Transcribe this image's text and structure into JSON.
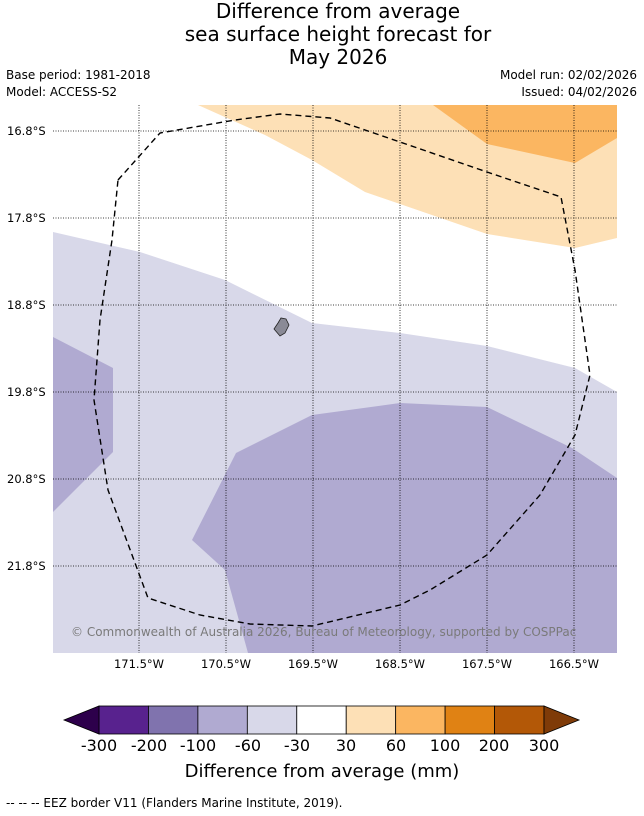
{
  "title_lines": [
    "Difference from average",
    "sea surface height forecast for",
    "May 2026"
  ],
  "meta": {
    "base_period": "Base period: 1981-2018",
    "model": "Model: ACCESS-S2",
    "model_run": "Model run: 02/02/2026",
    "issued": "Issued: 04/02/2026"
  },
  "map": {
    "lat_labels": [
      "16.8°S",
      "17.8°S",
      "18.8°S",
      "19.8°S",
      "20.8°S",
      "21.8°S"
    ],
    "lon_labels": [
      "171.5°W",
      "170.5°W",
      "169.5°W",
      "168.5°W",
      "167.5°W",
      "166.5°W"
    ],
    "copyright": "© Commonwealth of Australia 2026, Bureau of Meteorology, supported by COSPPac",
    "region_colors": {
      "neutral": "#ffffff",
      "low_neg": "#d8d8e9",
      "mid_neg": "#b0aad1",
      "low_pos": "#fde0b6",
      "mid_pos": "#fbb661",
      "land": "#8a8a96"
    }
  },
  "colorbar": {
    "tick_labels": [
      "-300",
      "-200",
      "-100",
      "-60",
      "-30",
      "30",
      "60",
      "100",
      "200",
      "300"
    ],
    "bins": [
      {
        "color": "#58228e"
      },
      {
        "color": "#8073ae"
      },
      {
        "color": "#b0aad1"
      },
      {
        "color": "#d8d8e9"
      },
      {
        "color": "#ffffff"
      },
      {
        "color": "#fde0b6"
      },
      {
        "color": "#fbb661"
      },
      {
        "color": "#e08214"
      },
      {
        "color": "#b35807"
      }
    ],
    "low_extend_color": "#2d004b",
    "high_extend_color": "#7f3b08",
    "label": "Difference from average (mm)"
  },
  "legend": {
    "eez_text": "--  --  -- EEZ border V11 (Flanders Marine Institute, 2019)."
  }
}
